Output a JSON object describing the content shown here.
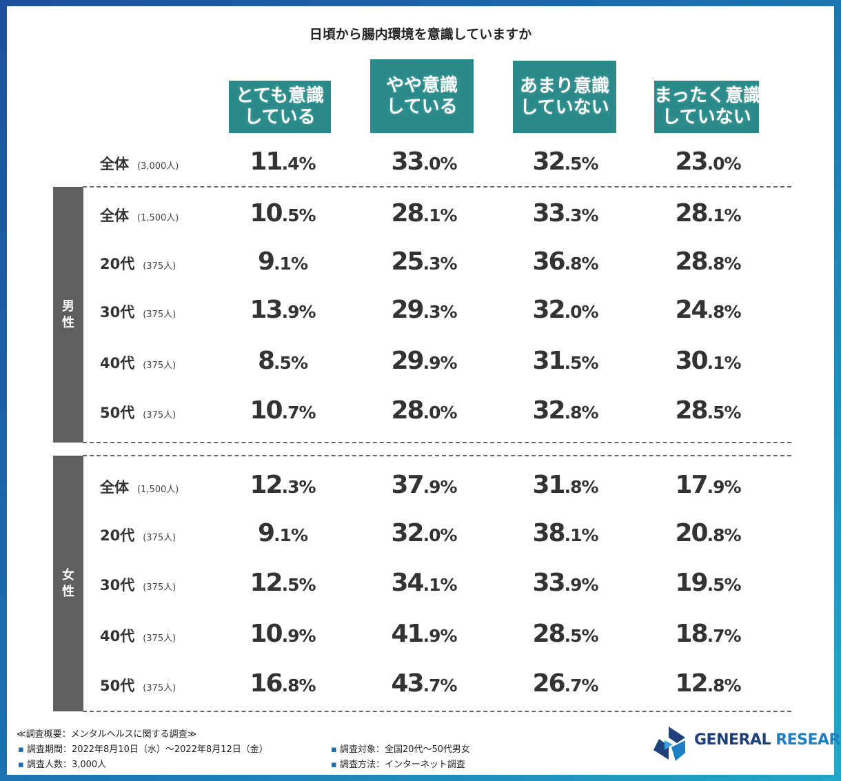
{
  "title": "日頃から腸内環境を意識していますか",
  "columns": [
    {
      "line1": "とても意識",
      "line2": "している"
    },
    {
      "line1": "やや意識",
      "line2": "している"
    },
    {
      "line1": "あまり意識",
      "line2": "していない"
    },
    {
      "line1": "まったく意識",
      "line2": "していない"
    }
  ],
  "groups": {
    "male": {
      "label_top": "男",
      "label_bottom": "性"
    },
    "female": {
      "label_top": "女",
      "label_bottom": "性"
    }
  },
  "chart_data": {
    "type": "table",
    "title": "日頃から腸内環境を意識していますか",
    "columns": [
      "とても意識している",
      "やや意識している",
      "あまり意識していない",
      "まったく意識していない"
    ],
    "rows": [
      {
        "group": "",
        "label": "全体",
        "n": "(3,000人)",
        "values": [
          11.4,
          33.0,
          32.5,
          23.0
        ]
      },
      {
        "group": "男性",
        "label": "全体",
        "n": "(1,500人)",
        "values": [
          10.5,
          28.1,
          33.3,
          28.1
        ]
      },
      {
        "group": "男性",
        "label": "20代",
        "n": "(375人)",
        "values": [
          9.1,
          25.3,
          36.8,
          28.8
        ]
      },
      {
        "group": "男性",
        "label": "30代",
        "n": "(375人)",
        "values": [
          13.9,
          29.3,
          32.0,
          24.8
        ]
      },
      {
        "group": "男性",
        "label": "40代",
        "n": "(375人)",
        "values": [
          8.5,
          29.9,
          31.5,
          30.1
        ]
      },
      {
        "group": "男性",
        "label": "50代",
        "n": "(375人)",
        "values": [
          10.7,
          28.0,
          32.8,
          28.5
        ]
      },
      {
        "group": "女性",
        "label": "全体",
        "n": "(1,500人)",
        "values": [
          12.3,
          37.9,
          31.8,
          17.9
        ]
      },
      {
        "group": "女性",
        "label": "20代",
        "n": "(375人)",
        "values": [
          9.1,
          32.0,
          38.1,
          20.8
        ]
      },
      {
        "group": "女性",
        "label": "30代",
        "n": "(375人)",
        "values": [
          12.5,
          34.1,
          33.9,
          19.5
        ]
      },
      {
        "group": "女性",
        "label": "40代",
        "n": "(375人)",
        "values": [
          10.9,
          41.9,
          28.5,
          18.7
        ]
      },
      {
        "group": "女性",
        "label": "50代",
        "n": "(375人)",
        "values": [
          16.8,
          43.7,
          26.7,
          12.8
        ]
      }
    ],
    "unit": "%"
  },
  "footer": {
    "heading": "≪調査概要：メンタルヘルスに関する調査≫",
    "period": "調査期間：2022年8月10日（水）〜2022年8月12日（金）",
    "count": "調査人数：3,000人",
    "target": "調査対象：全国20代〜50代男女",
    "method": "調査方法：インターネット調査",
    "bullet": "▪"
  },
  "logo": {
    "word1": "GENERAL",
    "word2": "RESEARCH"
  },
  "colors": {
    "header": "#2a8a8a",
    "sidebar": "#5f5f5f",
    "text": "#333333",
    "brand_dark": "#1d3f7a",
    "brand_light": "#1e7fc2"
  }
}
